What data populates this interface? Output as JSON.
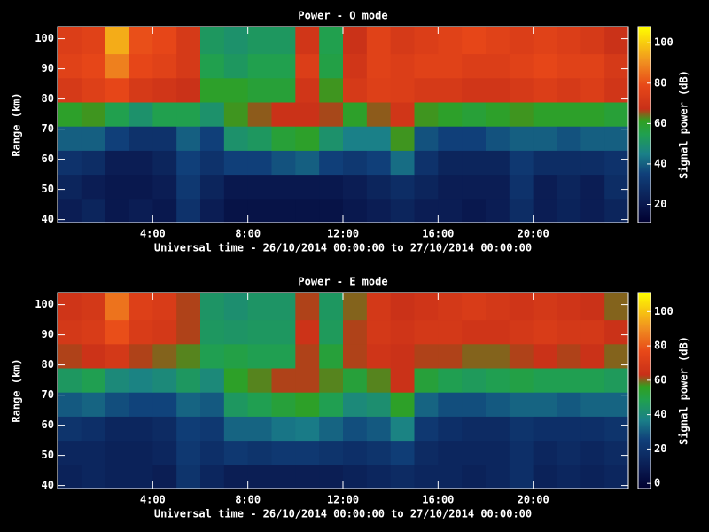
{
  "chart_data": [
    {
      "type": "heatmap",
      "title": "Power - O mode",
      "x_label": "Universal time - 26/10/2014 00:00:00 to 27/10/2014 00:00:00",
      "y_label": "Range (km)",
      "colorbar_label": "Signal power (dB)",
      "x_bins": [
        0,
        1,
        2,
        3,
        4,
        5,
        6,
        7,
        8,
        9,
        10,
        11,
        12,
        13,
        14,
        15,
        16,
        17,
        18,
        19,
        20,
        21,
        22,
        23,
        24
      ],
      "y_bins": [
        39,
        47,
        55,
        63,
        71,
        79,
        87,
        95,
        104
      ],
      "xlim": [
        0,
        24
      ],
      "ylim": [
        39,
        104
      ],
      "clim": [
        11,
        108
      ],
      "xticks": [
        {
          "value": 4,
          "label": "4:00"
        },
        {
          "value": 8,
          "label": "8:00"
        },
        {
          "value": 12,
          "label": "12:00"
        },
        {
          "value": 16,
          "label": "16:00"
        },
        {
          "value": 20,
          "label": "20:00"
        }
      ],
      "yticks": [
        40,
        50,
        60,
        70,
        80,
        90,
        100
      ],
      "cticks": [
        20,
        40,
        60,
        80,
        100
      ],
      "colormap": [
        {
          "stop": 0,
          "color": "#000030"
        },
        {
          "stop": 0.1,
          "color": "#0a1a50"
        },
        {
          "stop": 0.25,
          "color": "#10407a"
        },
        {
          "stop": 0.35,
          "color": "#1a8088"
        },
        {
          "stop": 0.45,
          "color": "#20a050"
        },
        {
          "stop": 0.52,
          "color": "#30a020"
        },
        {
          "stop": 0.58,
          "color": "#c83018"
        },
        {
          "stop": 0.7,
          "color": "#e84818"
        },
        {
          "stop": 0.82,
          "color": "#f09020"
        },
        {
          "stop": 1,
          "color": "#ffff00"
        }
      ],
      "values": [
        [
          22,
          25,
          20,
          22,
          20,
          30,
          22,
          18,
          18,
          18,
          18,
          18,
          20,
          22,
          25,
          22,
          22,
          20,
          22,
          28,
          22,
          24,
          22,
          25
        ],
        [
          25,
          22,
          20,
          20,
          22,
          32,
          25,
          20,
          20,
          20,
          20,
          20,
          22,
          25,
          28,
          25,
          22,
          22,
          22,
          30,
          22,
          25,
          22,
          28
        ],
        [
          30,
          28,
          22,
          22,
          25,
          35,
          30,
          35,
          35,
          38,
          40,
          35,
          32,
          35,
          42,
          30,
          25,
          25,
          25,
          32,
          28,
          28,
          28,
          30
        ],
        [
          40,
          40,
          35,
          30,
          30,
          40,
          35,
          50,
          52,
          58,
          60,
          50,
          45,
          45,
          62,
          38,
          35,
          35,
          38,
          40,
          40,
          38,
          40,
          40
        ],
        [
          60,
          62,
          55,
          50,
          55,
          55,
          50,
          62,
          65,
          68,
          68,
          66,
          60,
          65,
          70,
          62,
          60,
          58,
          60,
          62,
          60,
          60,
          60,
          58
        ],
        [
          72,
          75,
          78,
          72,
          70,
          68,
          60,
          60,
          58,
          58,
          70,
          62,
          72,
          75,
          74,
          72,
          72,
          70,
          70,
          72,
          74,
          72,
          74,
          70
        ],
        [
          76,
          78,
          88,
          78,
          76,
          72,
          55,
          52,
          55,
          55,
          74,
          56,
          70,
          76,
          74,
          76,
          76,
          74,
          74,
          76,
          78,
          76,
          76,
          72
        ],
        [
          74,
          76,
          95,
          80,
          78,
          72,
          52,
          50,
          52,
          52,
          70,
          55,
          68,
          76,
          72,
          74,
          76,
          78,
          76,
          74,
          76,
          74,
          72,
          68
        ]
      ]
    },
    {
      "type": "heatmap",
      "title": "Power - E mode",
      "x_label": "Universal time - 26/10/2014 00:00:00 to 27/10/2014 00:00:00",
      "y_label": "Range (km)",
      "colorbar_label": "Signal power (dB)",
      "x_bins": [
        0,
        1,
        2,
        3,
        4,
        5,
        6,
        7,
        8,
        9,
        10,
        11,
        12,
        13,
        14,
        15,
        16,
        17,
        18,
        19,
        20,
        21,
        22,
        23,
        24
      ],
      "y_bins": [
        39,
        47,
        55,
        63,
        71,
        79,
        87,
        95,
        104
      ],
      "xlim": [
        0,
        24
      ],
      "ylim": [
        39,
        104
      ],
      "clim": [
        -3,
        111
      ],
      "xticks": [
        {
          "value": 4,
          "label": "4:00"
        },
        {
          "value": 8,
          "label": "8:00"
        },
        {
          "value": 12,
          "label": "12:00"
        },
        {
          "value": 16,
          "label": "16:00"
        },
        {
          "value": 20,
          "label": "20:00"
        }
      ],
      "yticks": [
        40,
        50,
        60,
        70,
        80,
        90,
        100
      ],
      "cticks": [
        0,
        20,
        40,
        60,
        80,
        100
      ],
      "colormap": [
        {
          "stop": 0,
          "color": "#000030"
        },
        {
          "stop": 0.1,
          "color": "#0a1a50"
        },
        {
          "stop": 0.25,
          "color": "#10407a"
        },
        {
          "stop": 0.35,
          "color": "#1a8088"
        },
        {
          "stop": 0.45,
          "color": "#20a050"
        },
        {
          "stop": 0.52,
          "color": "#30a020"
        },
        {
          "stop": 0.58,
          "color": "#c83018"
        },
        {
          "stop": 0.7,
          "color": "#e84818"
        },
        {
          "stop": 0.82,
          "color": "#f09020"
        },
        {
          "stop": 1,
          "color": "#ffff00"
        }
      ],
      "values": [
        [
          12,
          14,
          12,
          12,
          10,
          20,
          14,
          10,
          10,
          10,
          10,
          10,
          12,
          14,
          16,
          14,
          14,
          12,
          14,
          18,
          12,
          14,
          12,
          14
        ],
        [
          14,
          14,
          12,
          12,
          14,
          22,
          18,
          22,
          20,
          22,
          22,
          20,
          18,
          20,
          24,
          16,
          14,
          14,
          14,
          18,
          14,
          16,
          14,
          16
        ],
        [
          20,
          18,
          14,
          14,
          16,
          24,
          22,
          32,
          32,
          35,
          36,
          32,
          28,
          30,
          38,
          22,
          18,
          16,
          16,
          20,
          18,
          18,
          18,
          20
        ],
        [
          30,
          32,
          28,
          26,
          26,
          32,
          30,
          45,
          48,
          52,
          55,
          48,
          40,
          42,
          55,
          32,
          28,
          28,
          30,
          32,
          32,
          30,
          32,
          32
        ],
        [
          45,
          48,
          40,
          38,
          40,
          45,
          40,
          55,
          58,
          62,
          62,
          58,
          52,
          58,
          64,
          52,
          48,
          46,
          48,
          50,
          48,
          48,
          48,
          46
        ],
        [
          62,
          65,
          68,
          62,
          60,
          58,
          48,
          50,
          48,
          48,
          62,
          52,
          62,
          66,
          64,
          62,
          62,
          60,
          60,
          62,
          64,
          62,
          64,
          60
        ],
        [
          68,
          70,
          78,
          70,
          68,
          62,
          45,
          44,
          45,
          45,
          65,
          46,
          62,
          68,
          66,
          68,
          68,
          66,
          66,
          68,
          70,
          68,
          68,
          64
        ],
        [
          66,
          68,
          85,
          72,
          70,
          62,
          44,
          42,
          44,
          44,
          62,
          45,
          60,
          68,
          64,
          66,
          68,
          70,
          68,
          66,
          68,
          66,
          64,
          60
        ]
      ]
    }
  ]
}
